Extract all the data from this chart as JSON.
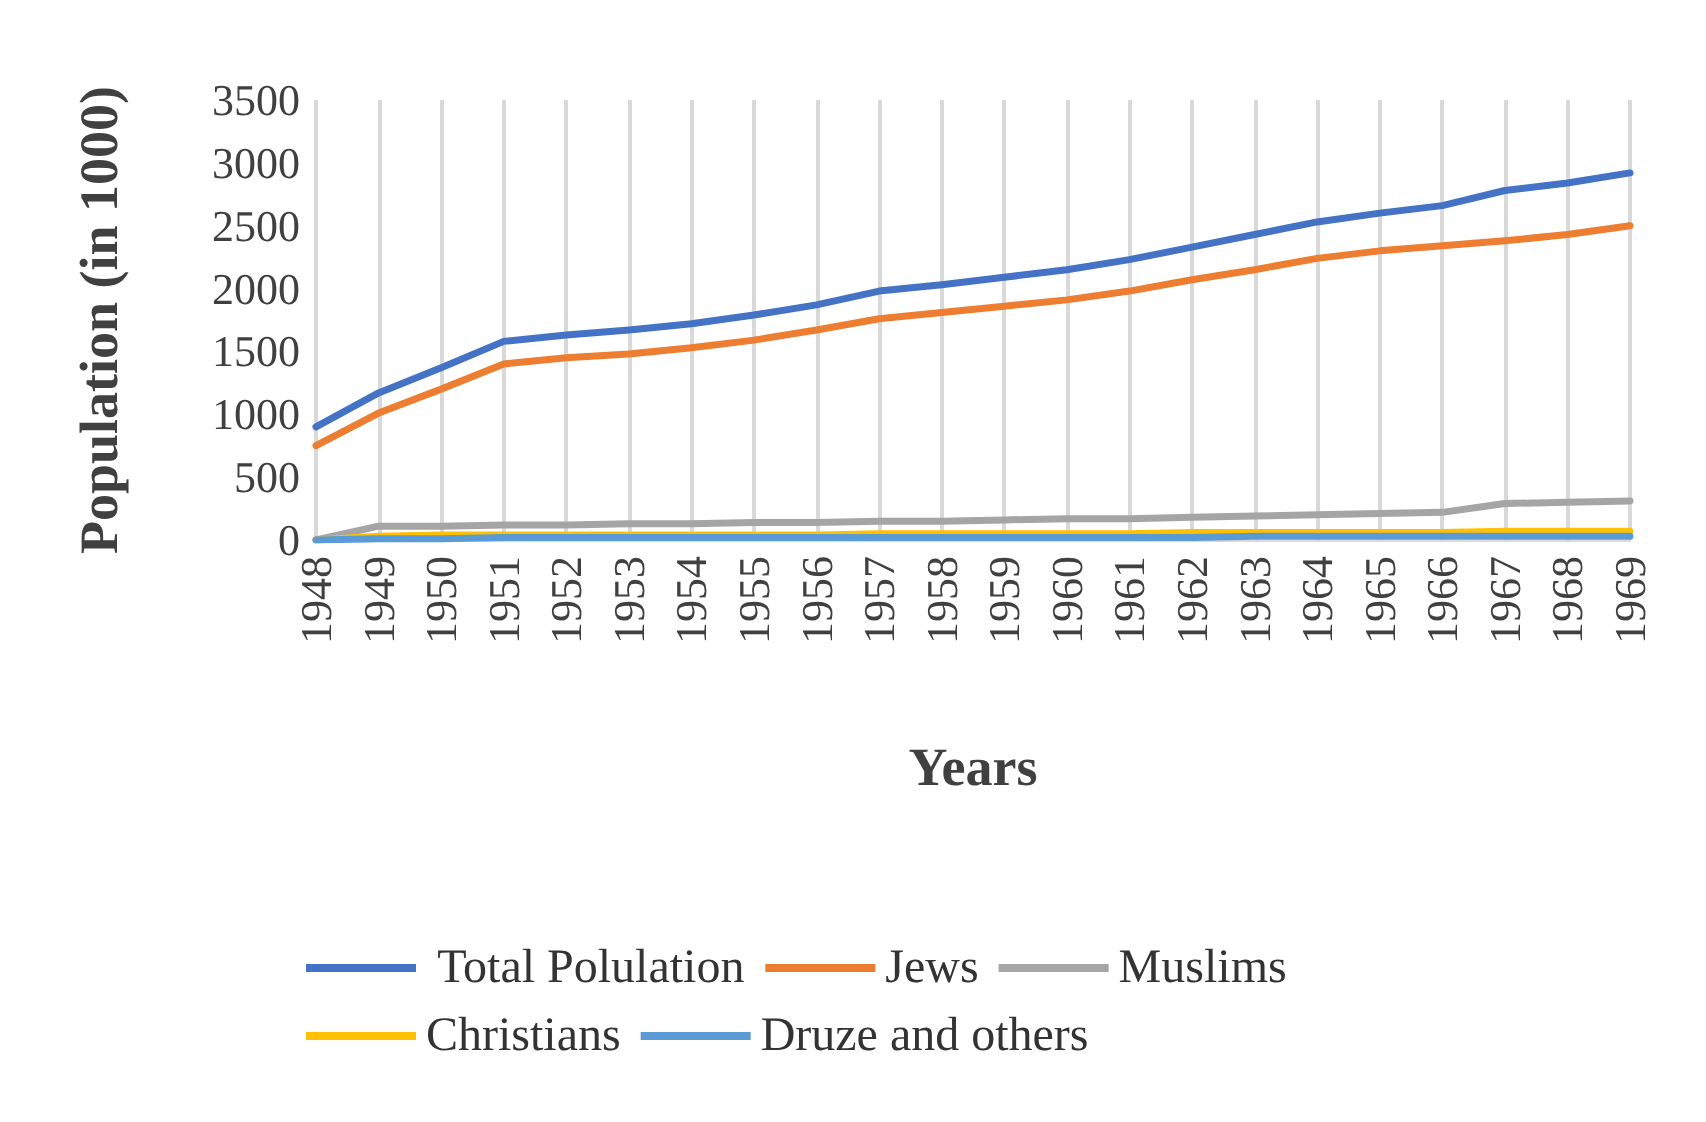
{
  "chart_data": {
    "type": "line",
    "xlabel": "Years",
    "ylabel": "Population (in 1000)",
    "categories": [
      "1948",
      "1949",
      "1950",
      "1951",
      "1952",
      "1953",
      "1954",
      "1955",
      "1956",
      "1957",
      "1958",
      "1959",
      "1960",
      "1961",
      "1962",
      "1963",
      "1964",
      "1965",
      "1966",
      "1967",
      "1968",
      "1969"
    ],
    "series": [
      {
        "name": " Total Polulation",
        "color": "#4472c4",
        "values": [
          900,
          1170,
          1370,
          1580,
          1630,
          1670,
          1720,
          1790,
          1870,
          1980,
          2030,
          2090,
          2150,
          2230,
          2330,
          2430,
          2530,
          2600,
          2660,
          2780,
          2840,
          2920
        ]
      },
      {
        "name": "Jews",
        "color": "#ed7d31",
        "values": [
          750,
          1010,
          1200,
          1400,
          1450,
          1480,
          1530,
          1590,
          1670,
          1760,
          1810,
          1860,
          1910,
          1980,
          2070,
          2150,
          2240,
          2300,
          2340,
          2380,
          2430,
          2500
        ]
      },
      {
        "name": "Muslims",
        "color": "#a5a5a5",
        "values": [
          0,
          110,
          110,
          120,
          120,
          130,
          130,
          140,
          140,
          150,
          150,
          160,
          170,
          170,
          180,
          190,
          200,
          210,
          220,
          290,
          300,
          310
        ]
      },
      {
        "name": "Christians",
        "color": "#ffc000",
        "values": [
          0,
          30,
          40,
          40,
          40,
          40,
          40,
          40,
          40,
          50,
          50,
          50,
          50,
          50,
          60,
          60,
          60,
          60,
          60,
          70,
          70,
          70
        ]
      },
      {
        "name": "Druze and others",
        "color": "#5b9bd5",
        "values": [
          0,
          10,
          10,
          20,
          20,
          20,
          20,
          20,
          20,
          20,
          20,
          20,
          20,
          20,
          20,
          30,
          30,
          30,
          30,
          30,
          30,
          30
        ]
      }
    ],
    "ylim": [
      0,
      3500
    ],
    "yticks": [
      0,
      500,
      1000,
      1500,
      2000,
      2500,
      3000,
      3500
    ],
    "grid": "x",
    "legend": "bottom",
    "marker": "none",
    "line_style": "solid"
  }
}
